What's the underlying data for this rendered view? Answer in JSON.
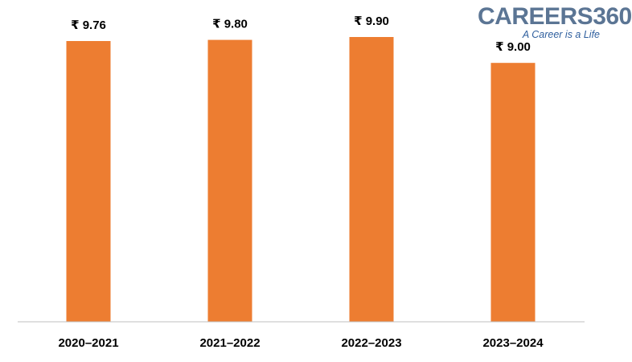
{
  "logo": {
    "name": "CAREERS360",
    "tagline": "A Career is a Life"
  },
  "colors": {
    "bar": "#ED7D31",
    "axis": "#bfbfbf",
    "text": "#000000"
  },
  "chart_data": {
    "type": "bar",
    "categories": [
      "2020–2021",
      "2021–2022",
      "2022–2023",
      "2023–2024"
    ],
    "values": [
      9.76,
      9.8,
      9.9,
      9.0
    ],
    "data_labels": [
      "₹ 9.76",
      "₹ 9.80",
      "₹ 9.90",
      "₹ 9.00"
    ],
    "title": "",
    "xlabel": "",
    "ylabel": "",
    "ylim": [
      0,
      10.2
    ],
    "grid": false,
    "legend": "none"
  }
}
